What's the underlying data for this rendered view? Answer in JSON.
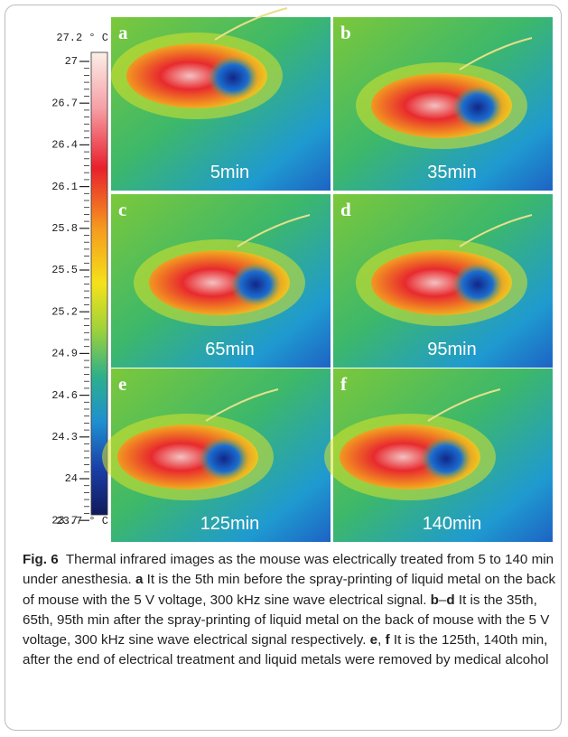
{
  "figure": {
    "colorbar": {
      "max_label": "27.2 ° C",
      "min_label": "23.7 ° C",
      "ticks": [
        "27",
        "26.7",
        "26.4",
        "26.1",
        "25.8",
        "25.5",
        "25.2",
        "24.9",
        "24.6",
        "24.3",
        "24",
        "23.7"
      ]
    },
    "panels": [
      {
        "letter": "a",
        "time": "5min"
      },
      {
        "letter": "b",
        "time": "35min"
      },
      {
        "letter": "c",
        "time": "65min"
      },
      {
        "letter": "d",
        "time": "95min"
      },
      {
        "letter": "e",
        "time": "125min"
      },
      {
        "letter": "f",
        "time": "140min"
      }
    ],
    "caption": [
      {
        "text": "Fig. 6",
        "bold": true
      },
      {
        "text": "  Thermal infrared images as the mouse was electrically treated from 5 to 140 min under anesthesia. "
      },
      {
        "text": "a",
        "bold": true
      },
      {
        "text": " It is the 5th min before the spray-printing of liquid metal on the back of mouse with the 5 V voltage, 300 kHz sine wave electrical signal. "
      },
      {
        "text": "b",
        "bold": true
      },
      {
        "text": "–"
      },
      {
        "text": "d",
        "bold": true
      },
      {
        "text": " It is the 35th, 65th, 95th min after the spray-printing of liquid metal on the back of mouse with the 5 V voltage, 300 kHz sine wave electrical signal respectively. "
      },
      {
        "text": "e",
        "bold": true
      },
      {
        "text": ", "
      },
      {
        "text": "f",
        "bold": true
      },
      {
        "text": " It is the 125th, 140th min, after the end of electrical treatment and liquid metals were removed by medical alcohol"
      }
    ]
  }
}
